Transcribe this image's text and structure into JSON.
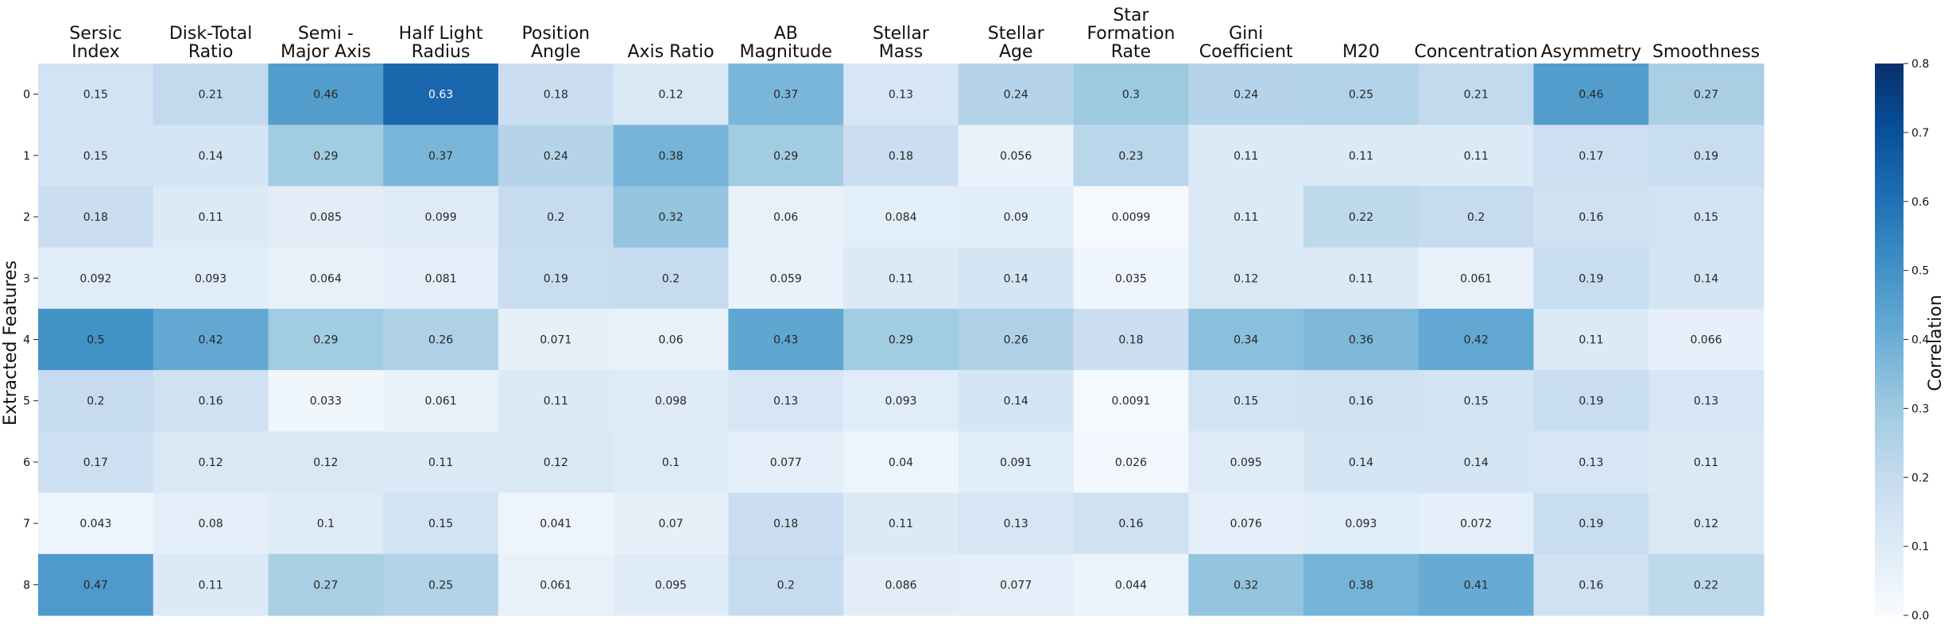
{
  "chart_data": {
    "type": "heatmap",
    "title": "",
    "xlabel": "",
    "ylabel": "Extracted Features",
    "colorbar_label": "Correlation",
    "colorbar_range": [
      0.0,
      0.8
    ],
    "colorbar_ticks": [
      "0.0",
      "0.1",
      "0.2",
      "0.3",
      "0.4",
      "0.5",
      "0.6",
      "0.7",
      "0.8"
    ],
    "colormap": "Blues",
    "columns": [
      [
        "Sersic",
        "Index"
      ],
      [
        "Disk-Total",
        "Ratio"
      ],
      [
        "Semi -",
        "Major Axis"
      ],
      [
        "Half Light",
        "Radius"
      ],
      [
        "Position",
        "Angle"
      ],
      [
        "Axis Ratio"
      ],
      [
        "AB",
        "Magnitude"
      ],
      [
        "Stellar",
        "Mass"
      ],
      [
        "Stellar",
        "Age"
      ],
      [
        "Star",
        "Formation",
        "Rate"
      ],
      [
        "Gini",
        "Coefficient"
      ],
      [
        "M20"
      ],
      [
        "Concentration"
      ],
      [
        "Asymmetry"
      ],
      [
        "Smoothness"
      ]
    ],
    "rows": [
      "0",
      "1",
      "2",
      "3",
      "4",
      "5",
      "6",
      "7",
      "8"
    ],
    "values": [
      [
        "0.15",
        "0.21",
        "0.46",
        "0.63",
        "0.18",
        "0.12",
        "0.37",
        "0.13",
        "0.24",
        "0.3",
        "0.24",
        "0.25",
        "0.21",
        "0.46",
        "0.27"
      ],
      [
        "0.15",
        "0.14",
        "0.29",
        "0.37",
        "0.24",
        "0.38",
        "0.29",
        "0.18",
        "0.056",
        "0.23",
        "0.11",
        "0.11",
        "0.11",
        "0.17",
        "0.19"
      ],
      [
        "0.18",
        "0.11",
        "0.085",
        "0.099",
        "0.2",
        "0.32",
        "0.06",
        "0.084",
        "0.09",
        "0.0099",
        "0.11",
        "0.22",
        "0.2",
        "0.16",
        "0.15"
      ],
      [
        "0.092",
        "0.093",
        "0.064",
        "0.081",
        "0.19",
        "0.2",
        "0.059",
        "0.11",
        "0.14",
        "0.035",
        "0.12",
        "0.11",
        "0.061",
        "0.19",
        "0.14"
      ],
      [
        "0.5",
        "0.42",
        "0.29",
        "0.26",
        "0.071",
        "0.06",
        "0.43",
        "0.29",
        "0.26",
        "0.18",
        "0.34",
        "0.36",
        "0.42",
        "0.11",
        "0.066"
      ],
      [
        "0.2",
        "0.16",
        "0.033",
        "0.061",
        "0.11",
        "0.098",
        "0.13",
        "0.093",
        "0.14",
        "0.0091",
        "0.15",
        "0.16",
        "0.15",
        "0.19",
        "0.13"
      ],
      [
        "0.17",
        "0.12",
        "0.12",
        "0.11",
        "0.12",
        "0.1",
        "0.077",
        "0.04",
        "0.091",
        "0.026",
        "0.095",
        "0.14",
        "0.14",
        "0.13",
        "0.11"
      ],
      [
        "0.043",
        "0.08",
        "0.1",
        "0.15",
        "0.041",
        "0.07",
        "0.18",
        "0.11",
        "0.13",
        "0.16",
        "0.076",
        "0.093",
        "0.072",
        "0.19",
        "0.12"
      ],
      [
        "0.47",
        "0.11",
        "0.27",
        "0.25",
        "0.061",
        "0.095",
        "0.2",
        "0.086",
        "0.077",
        "0.044",
        "0.32",
        "0.38",
        "0.41",
        "0.16",
        "0.22"
      ]
    ]
  }
}
